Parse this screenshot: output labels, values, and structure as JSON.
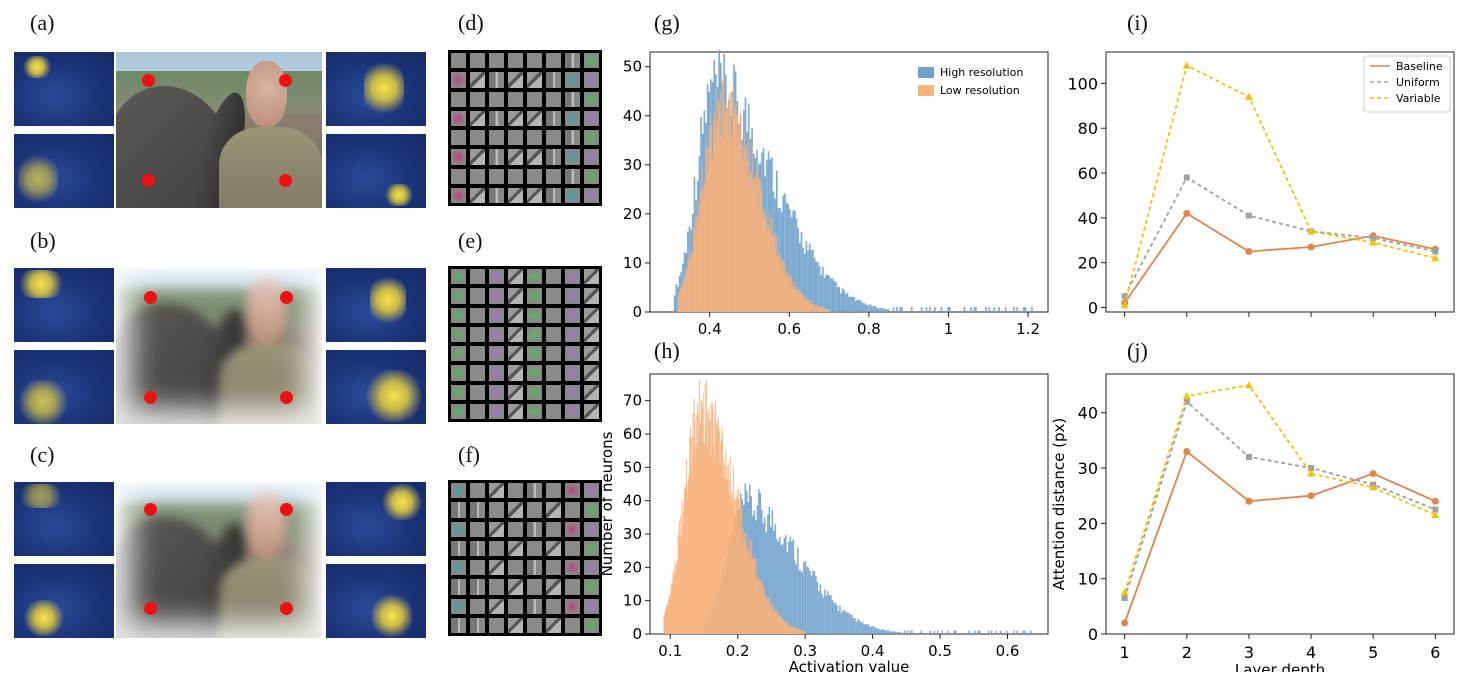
{
  "panel_labels": {
    "a": "(a)",
    "b": "(b)",
    "c": "(c)",
    "d": "(d)",
    "e": "(e)",
    "f": "(f)",
    "g": "(g)",
    "h": "(h)",
    "i": "(i)",
    "j": "(j)"
  },
  "colors": {
    "high_res": "#6fa1cc",
    "low_res": "#f7b27a",
    "baseline": "#e0844a",
    "uniform": "#a0a0a0",
    "variable": "#f2c20a",
    "attention_dot": "#ee1111"
  },
  "chart_data": [
    {
      "id": "g",
      "type": "bar",
      "x_ticks": [
        0.4,
        0.6,
        0.8,
        1.0,
        1.2
      ],
      "y_ticks": [
        0,
        10,
        20,
        30,
        40,
        50
      ],
      "xlim": [
        0.25,
        1.25
      ],
      "ylim": [
        0,
        53
      ],
      "legend": {
        "placement": "top-right",
        "entries": [
          {
            "name": "High resolution",
            "color": "#6fa1cc"
          },
          {
            "name": "Low resolution",
            "color": "#f7b27a"
          }
        ]
      },
      "series": [
        {
          "name": "High resolution",
          "peak_x": 0.41,
          "peak_y": 51,
          "x_min": 0.31,
          "x_max": 1.22
        },
        {
          "name": "Low resolution",
          "peak_x": 0.43,
          "peak_y": 47,
          "x_min": 0.32,
          "x_max": 0.7
        }
      ]
    },
    {
      "id": "h",
      "type": "bar",
      "xlabel": "Activation value",
      "ylabel": "Number of neurons",
      "x_ticks": [
        0.1,
        0.2,
        0.3,
        0.4,
        0.5,
        0.6
      ],
      "y_ticks": [
        0,
        10,
        20,
        30,
        40,
        50,
        60,
        70
      ],
      "xlim": [
        0.07,
        0.66
      ],
      "ylim": [
        0,
        78
      ],
      "series": [
        {
          "name": "High resolution",
          "peak_x": 0.21,
          "peak_y": 43,
          "x_min": 0.15,
          "x_max": 0.64
        },
        {
          "name": "Low resolution",
          "peak_x": 0.145,
          "peak_y": 75,
          "x_min": 0.09,
          "x_max": 0.3
        }
      ]
    },
    {
      "id": "i",
      "type": "line",
      "x": [
        1,
        2,
        3,
        4,
        5,
        6
      ],
      "ylim": [
        -2,
        114
      ],
      "y_ticks": [
        0,
        20,
        40,
        60,
        80,
        100
      ],
      "legend": {
        "placement": "top-right"
      },
      "series": [
        {
          "name": "Baseline",
          "values": [
            2,
            42,
            25,
            27,
            32,
            26
          ]
        },
        {
          "name": "Uniform",
          "values": [
            5,
            58,
            41,
            34,
            31,
            25
          ]
        },
        {
          "name": "Variable",
          "values": [
            1,
            108,
            94,
            34,
            29,
            22
          ]
        }
      ]
    },
    {
      "id": "j",
      "type": "line",
      "xlabel": "Layer depth",
      "ylabel": "Attention distance (px)",
      "x": [
        1,
        2,
        3,
        4,
        5,
        6
      ],
      "ylim": [
        0,
        47
      ],
      "x_ticks": [
        1,
        2,
        3,
        4,
        5,
        6
      ],
      "y_ticks": [
        0,
        10,
        20,
        30,
        40
      ],
      "series": [
        {
          "name": "Baseline",
          "values": [
            2,
            33,
            24,
            25,
            29,
            24
          ]
        },
        {
          "name": "Uniform",
          "values": [
            6.5,
            42,
            32,
            30,
            27,
            22.5
          ]
        },
        {
          "name": "Variable",
          "values": [
            7.5,
            43,
            45,
            29,
            26.5,
            21.5
          ]
        }
      ]
    }
  ]
}
